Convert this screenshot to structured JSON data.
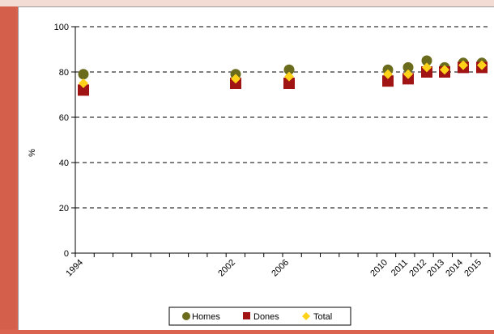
{
  "chart_data": {
    "type": "scatter",
    "title": "",
    "ylabel": "%",
    "xlabel": "",
    "ylim": [
      0,
      100
    ],
    "yticks": [
      0,
      20,
      40,
      60,
      80,
      100
    ],
    "grid": true,
    "legend_position": "bottom",
    "categories": [
      "1994",
      "2002",
      "2006",
      "2010",
      "2011",
      "2012",
      "2013",
      "2014",
      "2015"
    ],
    "series": [
      {
        "name": "Homes",
        "color": "#6b6b1e",
        "marker": "circle",
        "values": [
          79,
          79,
          81,
          81,
          82,
          85,
          82,
          84,
          84
        ]
      },
      {
        "name": "Dones",
        "color": "#a01414",
        "marker": "square",
        "values": [
          72,
          75,
          75,
          76,
          77,
          80,
          80,
          82,
          82
        ]
      },
      {
        "name": "Total",
        "color": "#ffd21a",
        "marker": "diamond",
        "values": [
          75,
          77,
          78,
          79,
          79,
          82,
          81,
          83,
          83
        ]
      }
    ]
  }
}
